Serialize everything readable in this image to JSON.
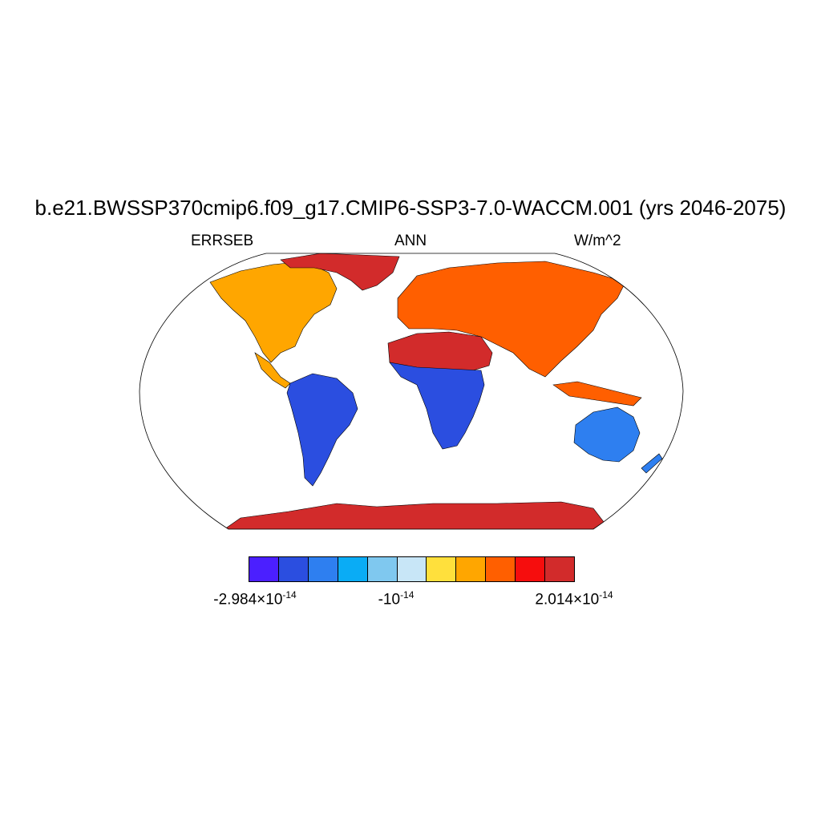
{
  "title": "b.e21.BWSSP370cmip6.f09_g17.CMIP6-SSP3-7.0-WACCM.001 (yrs 2046-2075)",
  "subtitles": {
    "left": "ERRSEB",
    "center": "ANN",
    "right": "W/m^2"
  },
  "colorbar": {
    "colors": [
      "#4b1fff",
      "#2b4ee0",
      "#2e7ff0",
      "#0aacf5",
      "#7fc8ef",
      "#c8e6f7",
      "#ffe03c",
      "#ffa600",
      "#ff5f00",
      "#f60d0d",
      "#d22b2b"
    ],
    "labels": [
      {
        "mant": "-2.984",
        "times": "×",
        "base": "10",
        "exp": "-14"
      },
      {
        "mant": "-",
        "times": "",
        "base": "10",
        "exp": "-14"
      },
      {
        "mant": "2.014",
        "times": "×",
        "base": "10",
        "exp": "-14"
      }
    ]
  },
  "map": {
    "projection": "robinson",
    "land_regions": [
      {
        "name": "north-america",
        "color": "#ffa600"
      },
      {
        "name": "greenland",
        "color": "#d22b2b"
      },
      {
        "name": "south-america",
        "color": "#2b4ee0"
      },
      {
        "name": "africa-north",
        "color": "#d22b2b"
      },
      {
        "name": "africa-south",
        "color": "#2b4ee0"
      },
      {
        "name": "eurasia",
        "color": "#ff5f00"
      },
      {
        "name": "australia",
        "color": "#2e7ff0"
      },
      {
        "name": "antarctica",
        "color": "#d22b2b"
      }
    ]
  }
}
